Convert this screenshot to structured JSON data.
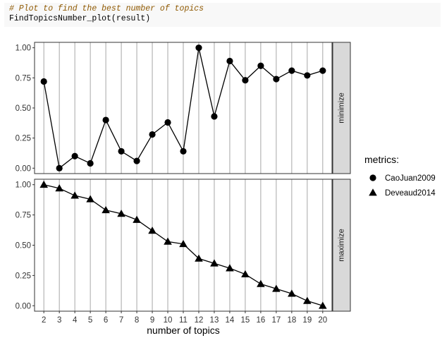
{
  "code": {
    "comment": "# Plot to find the best number of topics",
    "line": "FindTopicsNumber_plot(result)"
  },
  "chart_data": {
    "type": "line",
    "xlabel": "number of topics",
    "x": [
      2,
      3,
      4,
      5,
      6,
      7,
      8,
      9,
      10,
      11,
      12,
      13,
      14,
      15,
      16,
      17,
      18,
      19,
      20
    ],
    "ylim": [
      0,
      1
    ],
    "yticks": [
      "0.00",
      "0.25",
      "0.50",
      "0.75",
      "1.00"
    ],
    "grid": "vertical",
    "legend": {
      "title": "metrics:",
      "position": "right",
      "items": [
        {
          "label": "CaoJuan2009",
          "shape": "circle"
        },
        {
          "label": "Deveaud2014",
          "shape": "triangle"
        }
      ]
    },
    "panels": [
      {
        "strip": "minimize",
        "series": {
          "name": "CaoJuan2009",
          "shape": "circle",
          "values": [
            0.72,
            0.0,
            0.1,
            0.04,
            0.4,
            0.14,
            0.06,
            0.28,
            0.38,
            0.14,
            1.0,
            0.43,
            0.89,
            0.73,
            0.85,
            0.74,
            0.81,
            0.77,
            0.81
          ]
        }
      },
      {
        "strip": "maximize",
        "series": {
          "name": "Deveaud2014",
          "shape": "triangle",
          "values": [
            1.0,
            0.97,
            0.91,
            0.88,
            0.79,
            0.76,
            0.71,
            0.62,
            0.53,
            0.51,
            0.39,
            0.35,
            0.31,
            0.26,
            0.18,
            0.14,
            0.1,
            0.04,
            0.0
          ]
        }
      }
    ],
    "colors": {
      "points": "#000000",
      "gridline": "#a6a6a6",
      "strip_fill": "#d9d9d9",
      "panel_border": "#333333"
    }
  }
}
